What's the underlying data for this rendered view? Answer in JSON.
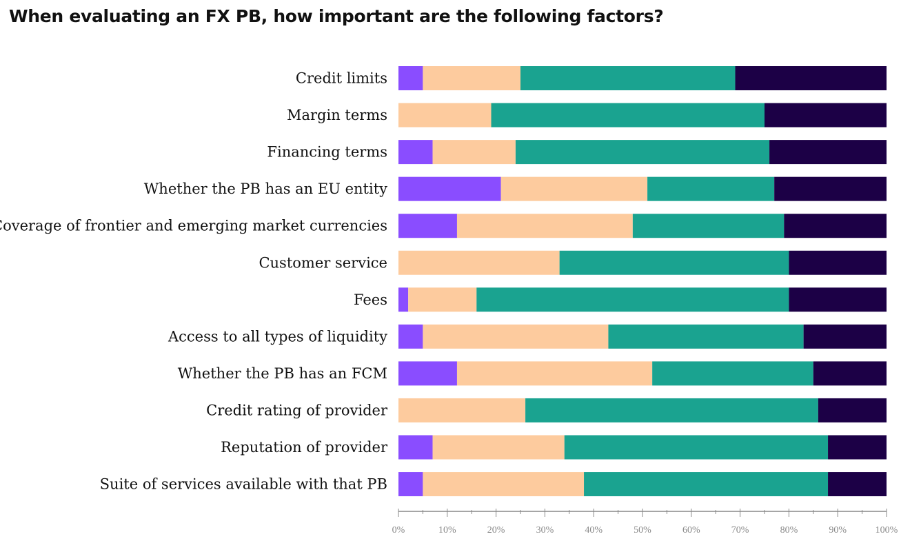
{
  "chart_data": {
    "type": "bar",
    "orientation": "horizontal",
    "stacked": true,
    "title": "When evaluating an FX PB, how important are the following factors?",
    "xlabel": "",
    "ylabel": "",
    "xlim": [
      0,
      100
    ],
    "grid": false,
    "legend": "none",
    "x_ticks": [
      "0%",
      "10%",
      "20%",
      "30%",
      "40%",
      "50%",
      "60%",
      "70%",
      "80%",
      "90%",
      "100%"
    ],
    "categories": [
      "Credit limits",
      "Margin terms",
      "Financing terms",
      "Whether the PB has an EU entity",
      "Coverage of frontier and emerging market currencies",
      "Customer service",
      "Fees",
      "Access to all types of liquidity",
      "Whether the PB has an FCM",
      "Credit rating of provider",
      "Reputation of provider",
      "Suite of services available with that PB"
    ],
    "series": [
      {
        "color": "#8a4dff",
        "values": [
          5,
          0,
          7,
          21,
          12,
          0,
          2,
          5,
          12,
          0,
          7,
          5
        ]
      },
      {
        "color": "#fdcb9e",
        "values": [
          20,
          19,
          17,
          30,
          36,
          33,
          14,
          38,
          40,
          26,
          27,
          33
        ]
      },
      {
        "color": "#1aa390",
        "values": [
          44,
          56,
          52,
          26,
          31,
          47,
          64,
          40,
          33,
          60,
          54,
          50
        ]
      },
      {
        "color": "#1c0046",
        "values": [
          31,
          25,
          24,
          23,
          21,
          20,
          20,
          17,
          15,
          14,
          12,
          12
        ]
      }
    ]
  }
}
